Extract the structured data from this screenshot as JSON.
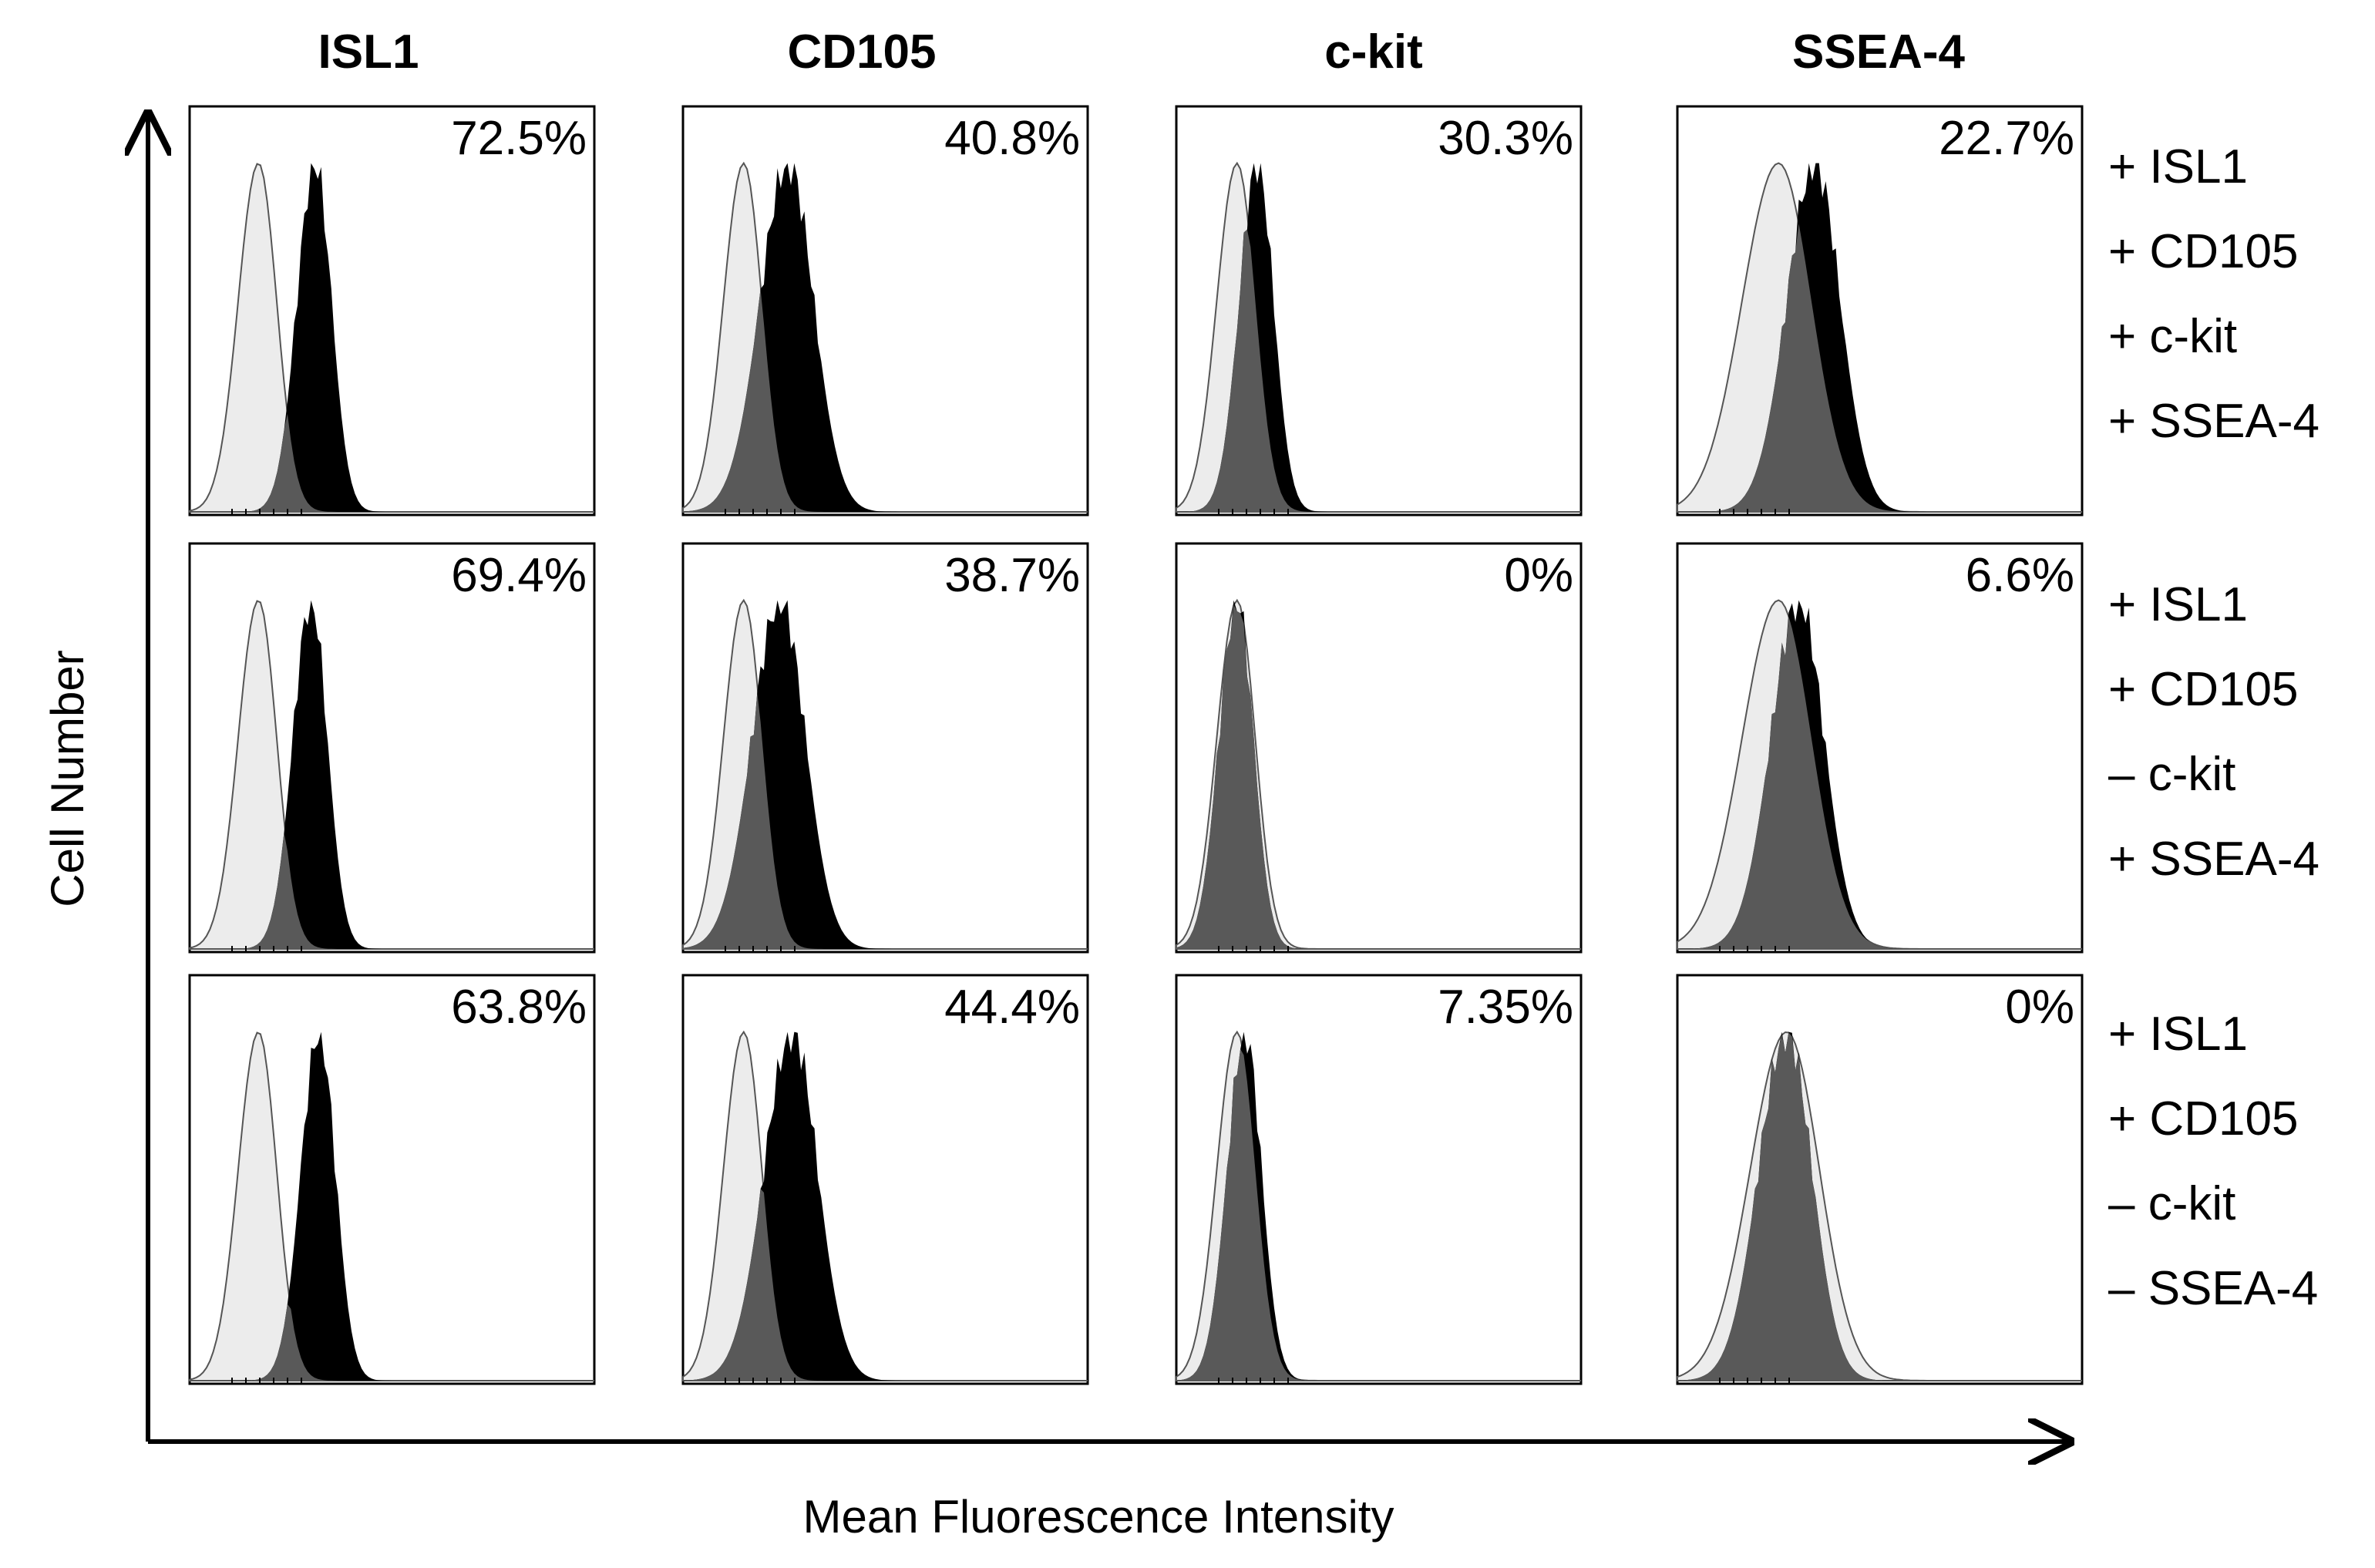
{
  "chart_data": {
    "type": "histogram-grid",
    "columns": [
      "ISL1",
      "CD105",
      "c-kit",
      "SSEA-4"
    ],
    "xlabel": "Mean Fluorescence Intensity",
    "ylabel": "Cell Number",
    "rows": [
      {
        "markers": [
          "+ ISL1",
          "+ CD105",
          "+ c-kit",
          "+ SSEA-4"
        ],
        "panels": [
          {
            "pct": "72.5%",
            "control_peak": 0.17,
            "sample_peak": 0.31
          },
          {
            "pct": "40.8%",
            "control_peak": 0.15,
            "sample_peak": 0.26
          },
          {
            "pct": "30.3%",
            "control_peak": 0.15,
            "sample_peak": 0.2
          },
          {
            "pct": "22.7%",
            "control_peak": 0.25,
            "sample_peak": 0.34
          }
        ]
      },
      {
        "markers": [
          "+ ISL1",
          "+ CD105",
          "– c-kit",
          "+ SSEA-4"
        ],
        "panels": [
          {
            "pct": "69.4%",
            "control_peak": 0.17,
            "sample_peak": 0.3
          },
          {
            "pct": "38.7%",
            "control_peak": 0.15,
            "sample_peak": 0.24
          },
          {
            "pct": "0%",
            "control_peak": 0.15,
            "sample_peak": 0.15
          },
          {
            "pct": "6.6%",
            "control_peak": 0.25,
            "sample_peak": 0.3
          }
        ]
      },
      {
        "markers": [
          "+ ISL1",
          "+ CD105",
          "– c-kit",
          "– SSEA-4"
        ],
        "panels": [
          {
            "pct": "63.8%",
            "control_peak": 0.17,
            "sample_peak": 0.32
          },
          {
            "pct": "44.4%",
            "control_peak": 0.15,
            "sample_peak": 0.27
          },
          {
            "pct": "7.35%",
            "control_peak": 0.15,
            "sample_peak": 0.17
          },
          {
            "pct": "0%",
            "control_peak": 0.27,
            "sample_peak": 0.27
          }
        ]
      }
    ]
  }
}
